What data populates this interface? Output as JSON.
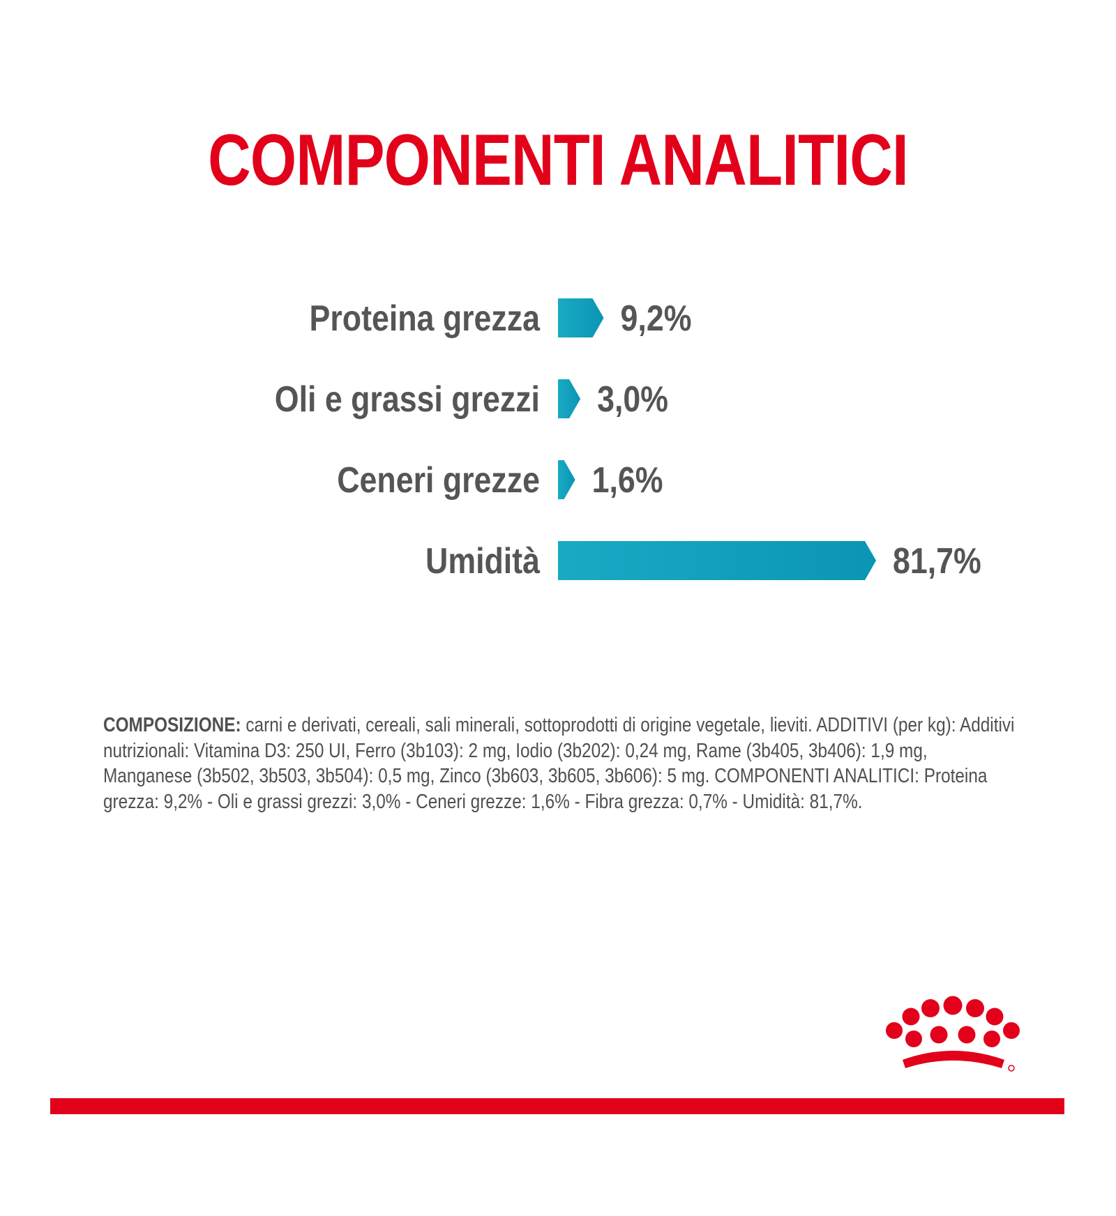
{
  "colors": {
    "title": "#E2001A",
    "label": "#555555",
    "bar": "#1AAAC4",
    "bar_dark": "#0A95B4",
    "text": "#505050",
    "brand_red": "#E2001A"
  },
  "title": "COMPONENTI ANALITICI",
  "chart_data": {
    "type": "bar",
    "orientation": "horizontal",
    "categories": [
      "Proteina grezza",
      "Oli e grassi grezzi",
      "Ceneri grezze",
      "Umidità"
    ],
    "values": [
      9.2,
      3.0,
      1.6,
      81.7
    ],
    "value_labels": [
      "9,2%",
      "3,0%",
      "1,6%",
      "81,7%"
    ],
    "unit": "%",
    "xlim": [
      0,
      81.7
    ],
    "grid": false,
    "legend": "none"
  },
  "composition": {
    "lead": "COMPOSIZIONE:",
    "lead_text": " carni e derivati, cereali, sali minerali, sottoprodotti di origine vegetale, lieviti.",
    "additives": "ADDITIVI (per kg): Additivi nutrizionali: Vitamina D3: 250 UI, Ferro (3b103): 2 mg, Iodio (3b202): 0,24 mg, Rame (3b405, 3b406): 1,9 mg, Manganese (3b502, 3b503, 3b504): 0,5 mg, Zinco (3b603, 3b605, 3b606): 5 mg.",
    "analytical": "COMPONENTI ANALITICI: Proteina grezza: 9,2% - Oli e grassi grezzi: 3,0% - Ceneri grezze: 1,6% - Fibra grezza: 0,7% - Umidità: 81,7%."
  },
  "logo": {
    "name": "crown-logo"
  }
}
